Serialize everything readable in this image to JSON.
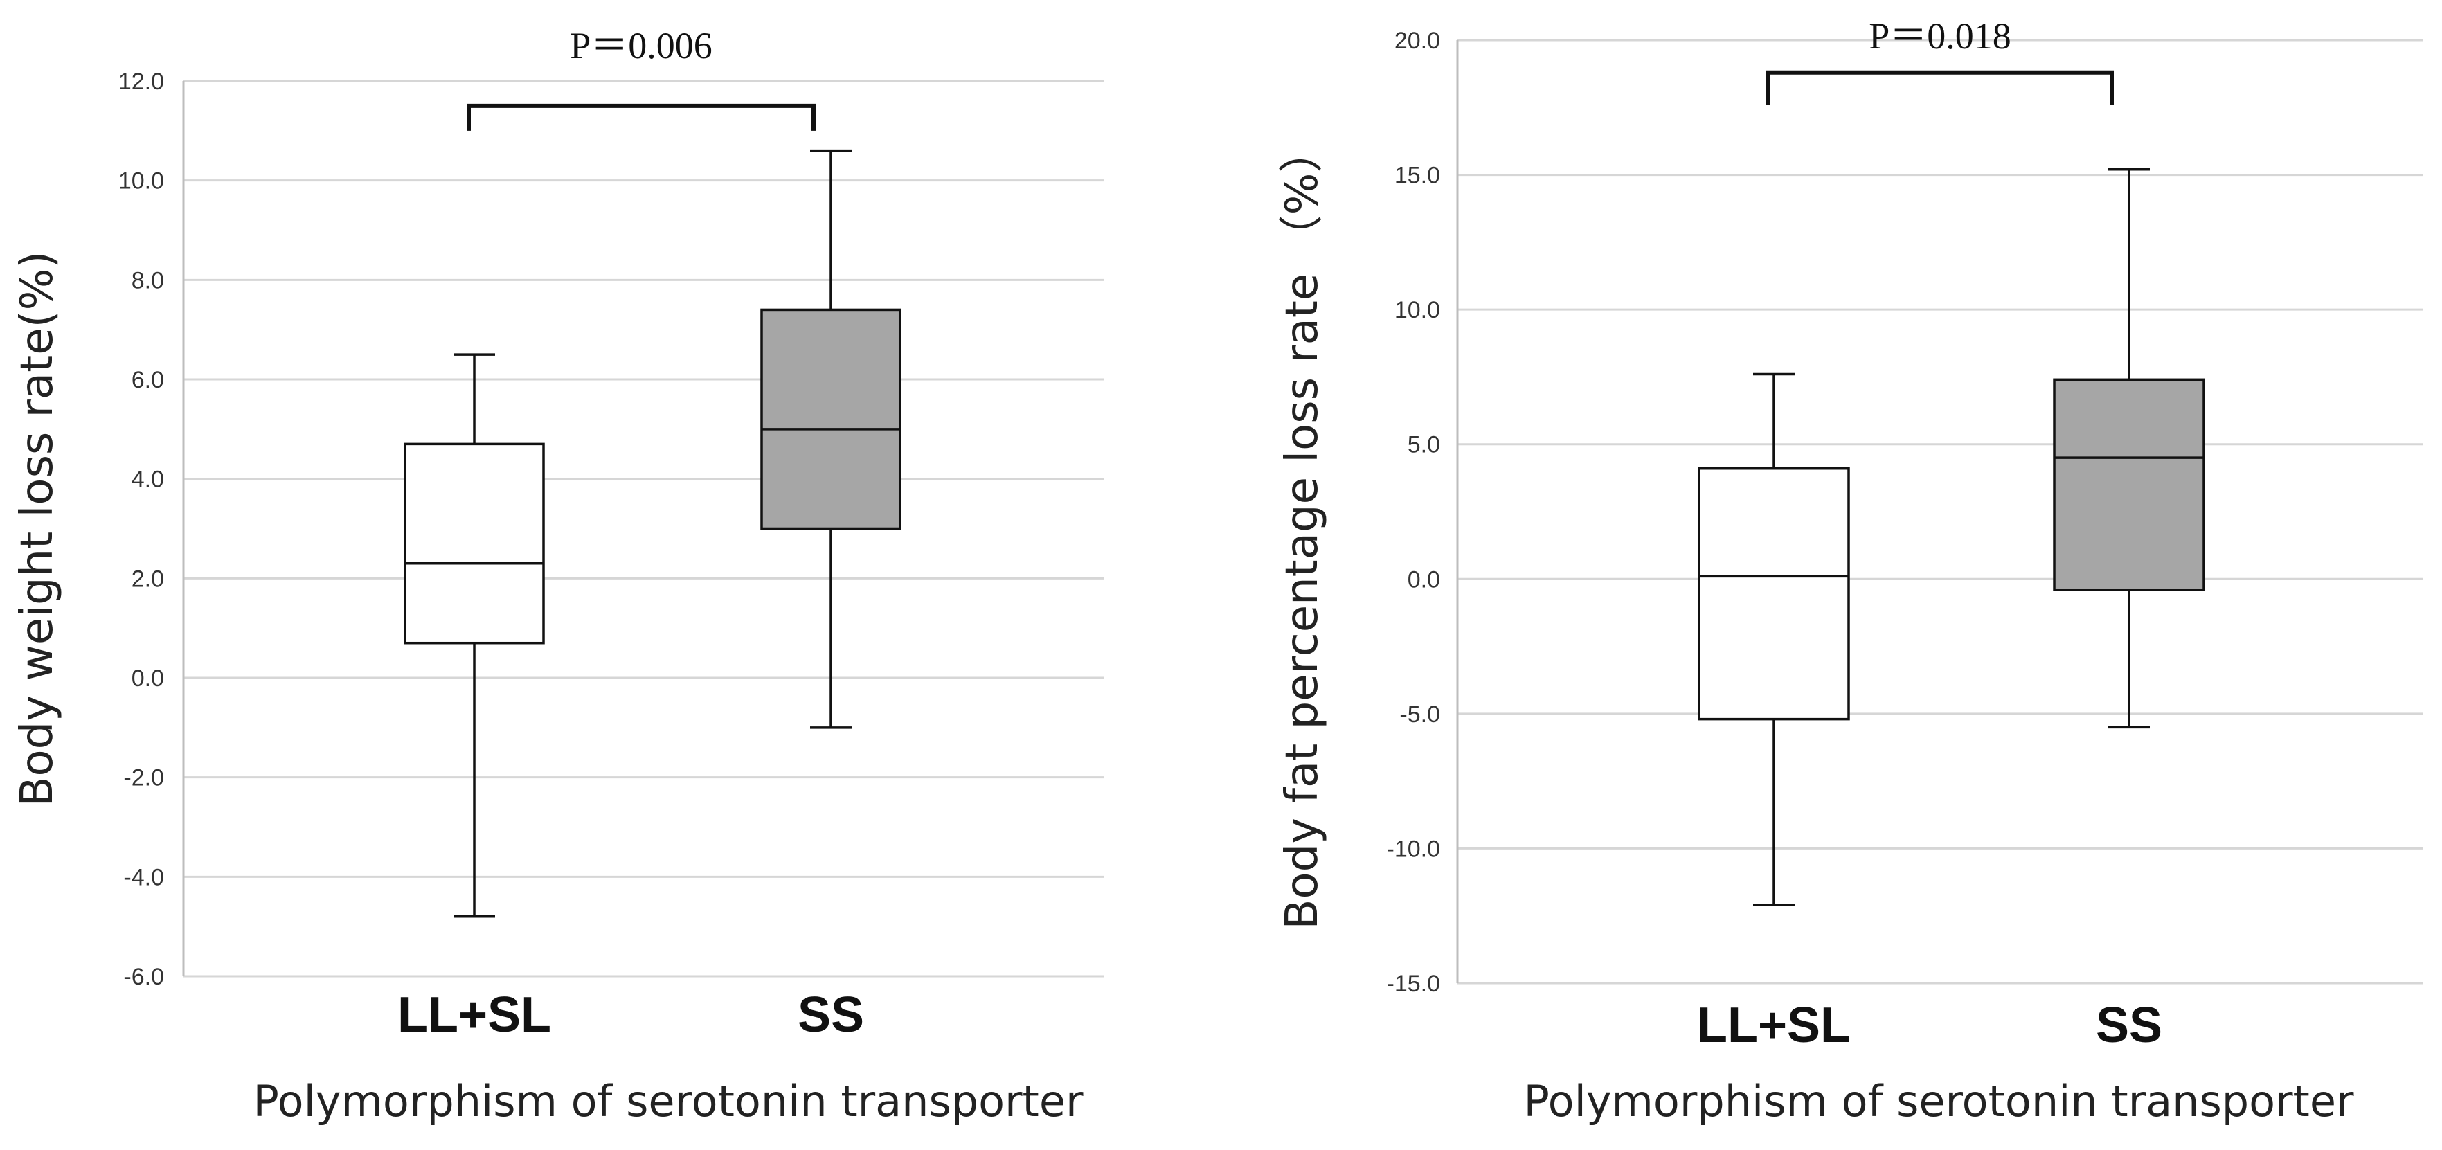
{
  "chart_data": [
    {
      "type": "boxplot",
      "ylabel": "Body weight loss rate(%)",
      "xlabel": "Polymorphism of serotonin transporter",
      "ylim": [
        -6.0,
        12.0
      ],
      "yticks": [
        -6.0,
        -4.0,
        -2.0,
        0.0,
        2.0,
        4.0,
        6.0,
        8.0,
        10.0,
        12.0
      ],
      "ytick_labels": [
        "-6.0",
        "-4.0",
        "-2.0",
        "0.0",
        "2.0",
        "4.0",
        "6.0",
        "8.0",
        "10.0",
        "12.0"
      ],
      "grid": true,
      "categories": [
        "LL+SL",
        "SS"
      ],
      "boxes": [
        {
          "category": "LL+SL",
          "min": -4.8,
          "q1": 0.7,
          "median": 2.3,
          "q3": 4.7,
          "max": 6.5,
          "fill": "#ffffff"
        },
        {
          "category": "SS",
          "min": -1.0,
          "q1": 3.0,
          "median": 5.0,
          "q3": 7.4,
          "max": 10.6,
          "fill": "#a6a6a6"
        }
      ],
      "annotation": {
        "text": "P＝0.006",
        "between": [
          "LL+SL",
          "SS"
        ],
        "bracket_y": 11.5,
        "bracket_drop": 0.5
      }
    },
    {
      "type": "boxplot",
      "ylabel": "Body fat percentage loss rate （%）",
      "xlabel": "Polymorphism of serotonin transporter",
      "ylim": [
        -15.0,
        20.0
      ],
      "yticks": [
        -15.0,
        -10.0,
        -5.0,
        0.0,
        5.0,
        10.0,
        15.0,
        20.0
      ],
      "ytick_labels": [
        "-15.0",
        "-10.0",
        "-5.0",
        "0.0",
        "5.0",
        "10.0",
        "15.0",
        "20.0"
      ],
      "grid": true,
      "categories": [
        "LL+SL",
        "SS"
      ],
      "boxes": [
        {
          "category": "LL+SL",
          "min": -12.1,
          "q1": -5.2,
          "median": 0.1,
          "q3": 4.1,
          "max": 7.6,
          "fill": "#ffffff"
        },
        {
          "category": "SS",
          "min": -5.5,
          "q1": -0.4,
          "median": 4.5,
          "q3": 7.4,
          "max": 15.2,
          "fill": "#a6a6a6"
        }
      ],
      "annotation": {
        "text": "P＝0.018",
        "between": [
          "LL+SL",
          "SS"
        ],
        "bracket_y": 18.8,
        "bracket_drop": 1.2
      }
    }
  ]
}
